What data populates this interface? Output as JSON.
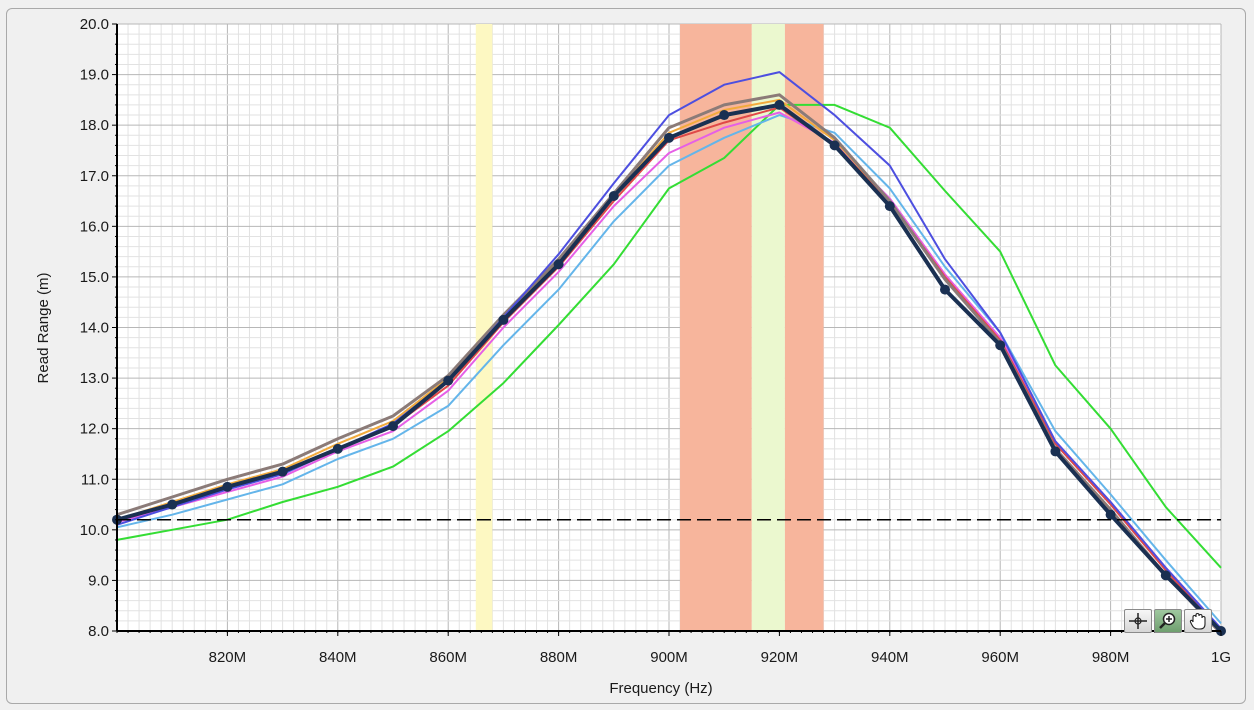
{
  "chart_data": {
    "type": "line",
    "xlabel": "Frequency (Hz)",
    "ylabel": "Read Range (m)",
    "xlim": [
      800,
      1000
    ],
    "ylim": [
      8,
      20
    ],
    "grid": true,
    "x_tick_labels": [
      {
        "x": 820,
        "label": "820M"
      },
      {
        "x": 840,
        "label": "840M"
      },
      {
        "x": 860,
        "label": "860M"
      },
      {
        "x": 880,
        "label": "880M"
      },
      {
        "x": 900,
        "label": "900M"
      },
      {
        "x": 920,
        "label": "920M"
      },
      {
        "x": 940,
        "label": "940M"
      },
      {
        "x": 960,
        "label": "960M"
      },
      {
        "x": 980,
        "label": "980M"
      },
      {
        "x": 1000,
        "label": "1G"
      }
    ],
    "y_tick_labels": [
      {
        "y": 8,
        "label": "8.0"
      },
      {
        "y": 9,
        "label": "9.0"
      },
      {
        "y": 10,
        "label": "10.0"
      },
      {
        "y": 11,
        "label": "11.0"
      },
      {
        "y": 12,
        "label": "12.0"
      },
      {
        "y": 13,
        "label": "13.0"
      },
      {
        "y": 14,
        "label": "14.0"
      },
      {
        "y": 15,
        "label": "15.0"
      },
      {
        "y": 16,
        "label": "16.0"
      },
      {
        "y": 17,
        "label": "17.0"
      },
      {
        "y": 18,
        "label": "18.0"
      },
      {
        "y": 19,
        "label": "19.0"
      },
      {
        "y": 20,
        "label": "20.0"
      }
    ],
    "bands": [
      {
        "x0": 865,
        "x1": 868,
        "color": "#fdf8c2"
      },
      {
        "x0": 902,
        "x1": 915,
        "color": "#f7b59c"
      },
      {
        "x0": 915,
        "x1": 921,
        "color": "#ebf8cf"
      },
      {
        "x0": 921,
        "x1": 928,
        "color": "#f7b59c"
      }
    ],
    "threshold": {
      "y": 10.2,
      "color": "#000000",
      "style": "dashed"
    },
    "x": [
      800,
      810,
      820,
      830,
      840,
      850,
      860,
      870,
      880,
      890,
      900,
      910,
      920,
      930,
      940,
      950,
      960,
      970,
      980,
      990,
      1000
    ],
    "series": [
      {
        "color": "#34dd34",
        "width": 2,
        "values": [
          9.8,
          10.0,
          10.2,
          10.55,
          10.85,
          11.25,
          11.95,
          12.9,
          14.05,
          15.25,
          16.75,
          17.35,
          18.4,
          18.4,
          17.95,
          16.7,
          15.5,
          13.25,
          12.0,
          10.45,
          9.25
        ]
      },
      {
        "color": "#64b5ea",
        "width": 2,
        "values": [
          10.05,
          10.3,
          10.6,
          10.9,
          11.4,
          11.8,
          12.45,
          13.65,
          14.75,
          16.1,
          17.2,
          17.75,
          18.2,
          17.85,
          16.75,
          15.2,
          13.9,
          11.95,
          10.7,
          9.4,
          8.15
        ]
      },
      {
        "color": "#e65fe6",
        "width": 2,
        "values": [
          10.15,
          10.45,
          10.75,
          11.05,
          11.55,
          11.95,
          12.75,
          14.0,
          15.1,
          16.4,
          17.45,
          17.95,
          18.25,
          17.65,
          16.55,
          15.05,
          13.8,
          11.75,
          10.55,
          9.25,
          8.05
        ]
      },
      {
        "color": "#e04848",
        "width": 2,
        "values": [
          10.2,
          10.5,
          10.85,
          11.15,
          11.6,
          12.05,
          12.85,
          14.1,
          15.2,
          16.5,
          17.7,
          18.05,
          18.35,
          17.6,
          16.5,
          15.0,
          13.75,
          11.7,
          10.5,
          9.2,
          8.0
        ]
      },
      {
        "color": "#f2aa3c",
        "width": 2,
        "values": [
          10.2,
          10.55,
          10.9,
          11.2,
          11.7,
          12.15,
          13.0,
          14.2,
          15.3,
          16.6,
          17.85,
          18.3,
          18.5,
          17.7,
          16.5,
          14.95,
          13.7,
          11.6,
          10.4,
          9.1,
          7.95
        ]
      },
      {
        "color": "#8b7b78",
        "width": 3,
        "values": [
          10.3,
          10.65,
          11.0,
          11.3,
          11.8,
          12.25,
          13.05,
          14.25,
          15.35,
          16.65,
          17.95,
          18.4,
          18.6,
          17.75,
          16.5,
          14.95,
          13.7,
          11.6,
          10.4,
          9.1,
          7.95
        ]
      },
      {
        "color": "#4d4fe0",
        "width": 2,
        "values": [
          10.1,
          10.45,
          10.8,
          11.1,
          11.6,
          12.1,
          12.95,
          14.2,
          15.45,
          16.85,
          18.2,
          18.8,
          19.05,
          18.2,
          17.2,
          15.35,
          13.9,
          11.75,
          10.55,
          9.25,
          8.05
        ]
      },
      {
        "color": "#1a3052",
        "width": 4,
        "markers": true,
        "values": [
          10.2,
          10.5,
          10.85,
          11.15,
          11.6,
          12.05,
          12.95,
          14.15,
          15.25,
          16.6,
          17.75,
          18.2,
          18.4,
          17.6,
          16.4,
          14.75,
          13.65,
          11.55,
          10.3,
          9.1,
          8.0
        ]
      }
    ]
  },
  "cursor_palette": {
    "tools": [
      {
        "icon": "crosshair-icon"
      },
      {
        "icon": "zoom-icon",
        "active": true
      },
      {
        "icon": "pan-hand-icon"
      }
    ]
  }
}
